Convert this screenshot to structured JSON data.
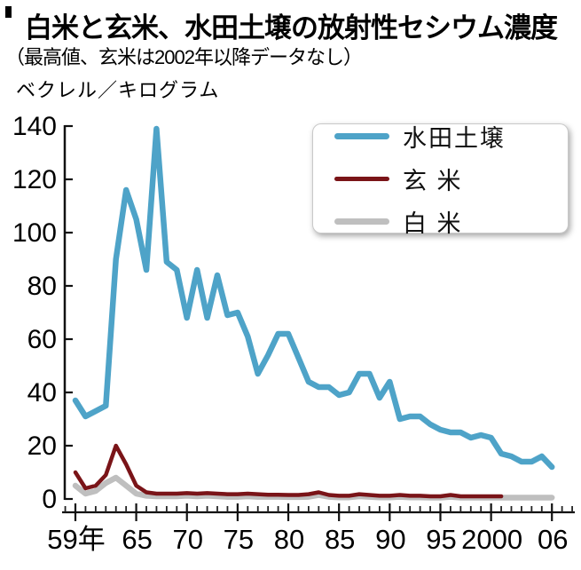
{
  "header": {
    "title": "白米と玄米、水田土壌の放射性セシウム濃度",
    "subtitle": "（最高値、玄米は2002年以降データなし）",
    "unit_label": "ベクレル／キログラム"
  },
  "legend": {
    "items": [
      {
        "key": "soil",
        "label": "水田土壌",
        "color": "#4ea3c8",
        "thickness": 7
      },
      {
        "key": "brown-rice",
        "label": "玄 米",
        "color": "#7a1418",
        "thickness": 5
      },
      {
        "key": "white-rice",
        "label": "白 米",
        "color": "#bfbfbf",
        "thickness": 7
      }
    ]
  },
  "chart_data": {
    "type": "line",
    "title": "白米と玄米、水田土壌の放射性セシウム濃度",
    "subtitle": "（最高値、玄米は2002年以降データなし）",
    "ylabel": "ベクレル／キログラム",
    "xlabel": "",
    "ylim": [
      0,
      140
    ],
    "ytick_interval": 20,
    "ytick_labels": [
      "0",
      "20",
      "40",
      "60",
      "80",
      "100",
      "120",
      "140"
    ],
    "x_range_years": [
      1959,
      2006
    ],
    "x_ticks": [
      {
        "year": 1959,
        "label": "59年"
      },
      {
        "year": 1965,
        "label": "65"
      },
      {
        "year": 1970,
        "label": "70"
      },
      {
        "year": 1975,
        "label": "75"
      },
      {
        "year": 1980,
        "label": "80"
      },
      {
        "year": 1985,
        "label": "85"
      },
      {
        "year": 1990,
        "label": "90"
      },
      {
        "year": 1995,
        "label": "95"
      },
      {
        "year": 2000,
        "label": "2000"
      },
      {
        "year": 2006,
        "label": "06"
      }
    ],
    "grid": false,
    "legend_position": "top-right",
    "series": [
      {
        "key": "soil",
        "name": "水田土壌",
        "color": "#4ea3c8",
        "stroke_width": 6.5,
        "start_year": 1959,
        "end_year": 2006,
        "values": [
          37,
          31,
          33,
          35,
          90,
          116,
          105,
          86,
          139,
          89,
          86,
          68,
          86,
          68,
          84,
          69,
          70,
          61,
          47,
          54,
          62,
          62,
          53,
          44,
          42,
          42,
          39,
          40,
          47,
          47,
          38,
          44,
          30,
          31,
          31,
          28,
          26,
          25,
          25,
          23,
          24,
          23,
          17,
          16,
          14,
          14,
          16,
          12
        ]
      },
      {
        "key": "brown-rice",
        "name": "玄米",
        "color": "#7a1418",
        "stroke_width": 4.5,
        "start_year": 1959,
        "end_year": 2001,
        "values": [
          10,
          4,
          5,
          9,
          20,
          13,
          5,
          2.5,
          2,
          2,
          2,
          2.2,
          2,
          2.2,
          2,
          1.8,
          1.8,
          2,
          1.8,
          1.6,
          1.6,
          1.5,
          1.5,
          1.8,
          2.5,
          1.5,
          1.2,
          1.2,
          1.8,
          1.5,
          1.2,
          1.2,
          1.5,
          1.2,
          1.2,
          1,
          1,
          1.5,
          1,
          1,
          1,
          1,
          1
        ]
      },
      {
        "key": "white-rice",
        "name": "白米",
        "color": "#bfbfbf",
        "stroke_width": 6.5,
        "start_year": 1959,
        "end_year": 2006,
        "values": [
          5,
          2,
          3,
          6,
          8,
          5,
          2,
          1.2,
          1,
          1,
          1,
          1.2,
          1,
          1.2,
          1,
          0.8,
          0.8,
          1,
          0.8,
          0.8,
          0.8,
          0.7,
          0.7,
          0.8,
          1.5,
          0.8,
          0.6,
          0.6,
          1,
          0.8,
          0.6,
          0.6,
          0.8,
          0.6,
          0.6,
          0.5,
          0.5,
          0.8,
          0.5,
          0.5,
          0.5,
          0.5,
          0.5,
          0.5,
          0.5,
          0.5,
          0.5,
          0.5
        ]
      }
    ]
  }
}
